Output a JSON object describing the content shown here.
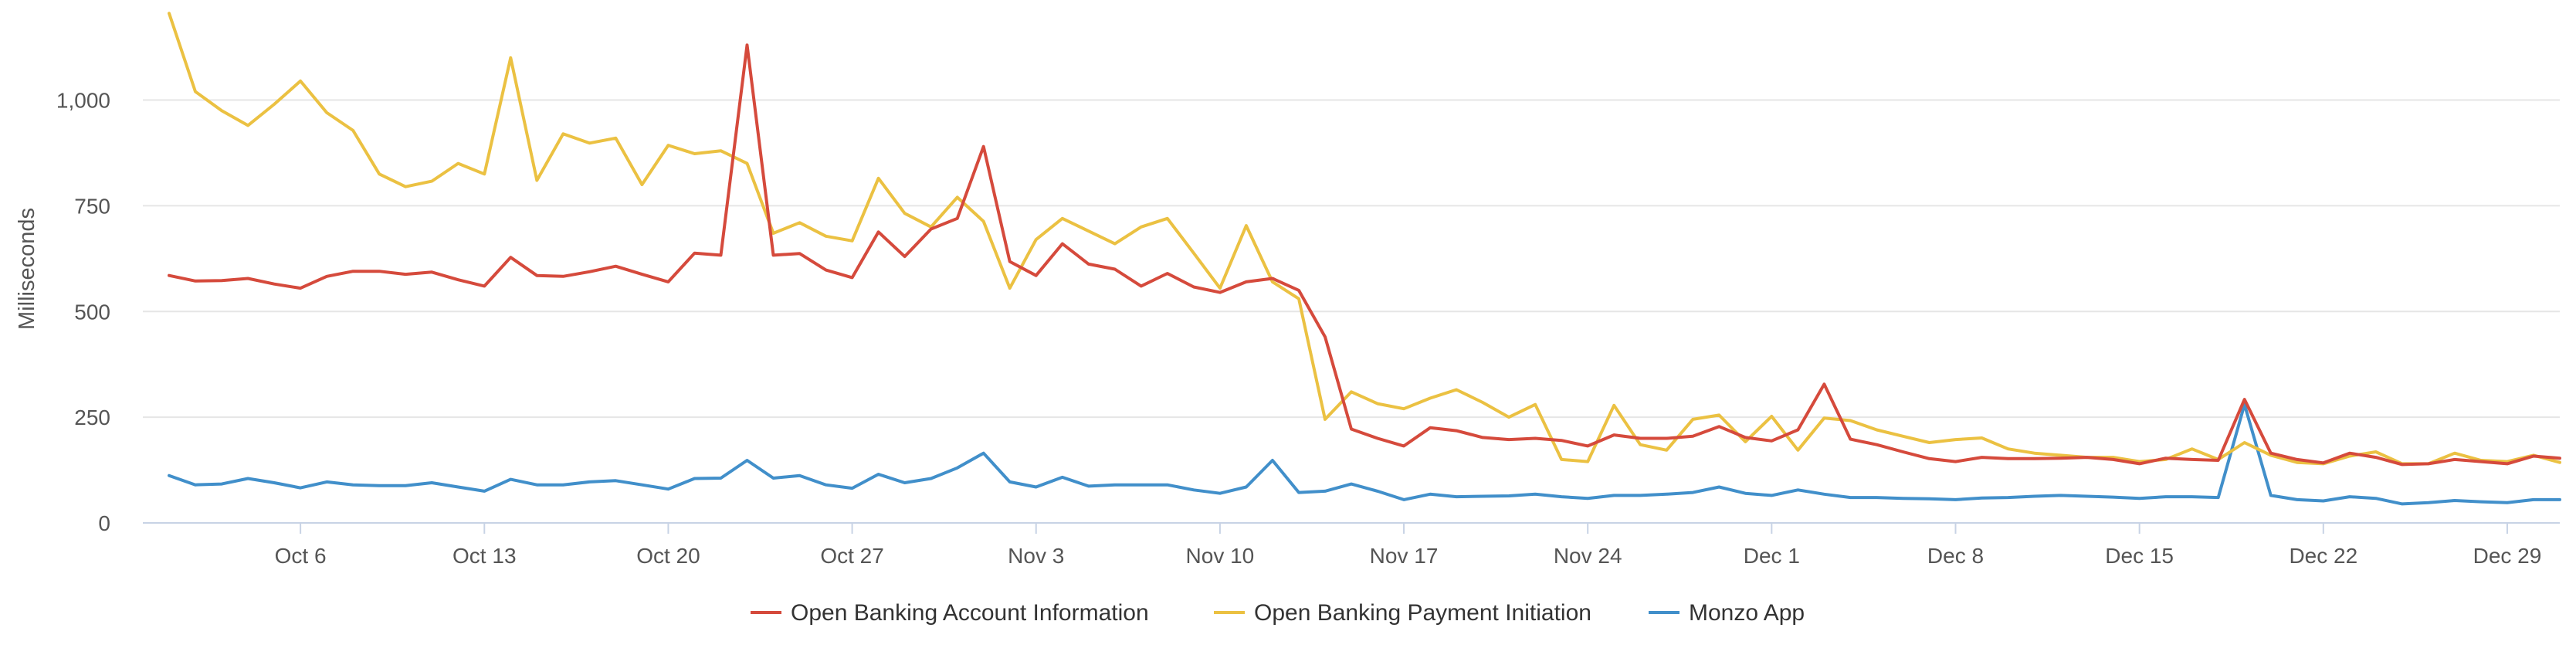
{
  "chart_data": {
    "type": "line",
    "title": "",
    "xlabel": "",
    "ylabel": "Milliseconds",
    "ylim": [
      0,
      1200
    ],
    "yticks": [
      0,
      250,
      500,
      750,
      1000
    ],
    "ytick_labels": [
      "0",
      "250",
      "500",
      "750",
      "1,000"
    ],
    "xlim": [
      "2024-09-30",
      "2024-12-31"
    ],
    "xticks": [
      "2024-10-06",
      "2024-10-13",
      "2024-10-20",
      "2024-10-27",
      "2024-11-03",
      "2024-11-10",
      "2024-11-17",
      "2024-11-24",
      "2024-12-01",
      "2024-12-08",
      "2024-12-15",
      "2024-12-22",
      "2024-12-29"
    ],
    "xtick_labels": [
      "Oct 6",
      "Oct 13",
      "Oct 20",
      "Oct 27",
      "Nov 3",
      "Nov 10",
      "Nov 17",
      "Nov 24",
      "Dec 1",
      "Dec 8",
      "Dec 15",
      "Dec 22",
      "Dec 29"
    ],
    "x": [
      "2024-10-01",
      "2024-10-02",
      "2024-10-03",
      "2024-10-04",
      "2024-10-05",
      "2024-10-06",
      "2024-10-07",
      "2024-10-08",
      "2024-10-09",
      "2024-10-10",
      "2024-10-11",
      "2024-10-12",
      "2024-10-13",
      "2024-10-14",
      "2024-10-15",
      "2024-10-16",
      "2024-10-17",
      "2024-10-18",
      "2024-10-19",
      "2024-10-20",
      "2024-10-21",
      "2024-10-22",
      "2024-10-23",
      "2024-10-24",
      "2024-10-25",
      "2024-10-26",
      "2024-10-27",
      "2024-10-28",
      "2024-10-29",
      "2024-10-30",
      "2024-10-31",
      "2024-11-01",
      "2024-11-02",
      "2024-11-03",
      "2024-11-04",
      "2024-11-05",
      "2024-11-06",
      "2024-11-07",
      "2024-11-08",
      "2024-11-09",
      "2024-11-10",
      "2024-11-11",
      "2024-11-12",
      "2024-11-13",
      "2024-11-14",
      "2024-11-15",
      "2024-11-16",
      "2024-11-17",
      "2024-11-18",
      "2024-11-19",
      "2024-11-20",
      "2024-11-21",
      "2024-11-22",
      "2024-11-23",
      "2024-11-24",
      "2024-11-25",
      "2024-11-26",
      "2024-11-27",
      "2024-11-28",
      "2024-11-29",
      "2024-11-30",
      "2024-12-01",
      "2024-12-02",
      "2024-12-03",
      "2024-12-04",
      "2024-12-05",
      "2024-12-06",
      "2024-12-07",
      "2024-12-08",
      "2024-12-09",
      "2024-12-10",
      "2024-12-11",
      "2024-12-12",
      "2024-12-13",
      "2024-12-14",
      "2024-12-15",
      "2024-12-16",
      "2024-12-17",
      "2024-12-18",
      "2024-12-19",
      "2024-12-20",
      "2024-12-21",
      "2024-12-22",
      "2024-12-23",
      "2024-12-24",
      "2024-12-25",
      "2024-12-26",
      "2024-12-27",
      "2024-12-28",
      "2024-12-29",
      "2024-12-30",
      "2024-12-31"
    ],
    "series": [
      {
        "name": "Open Banking Account Information",
        "color": "#d54a3c",
        "values": [
          585,
          572,
          573,
          578,
          565,
          555,
          583,
          595,
          595,
          588,
          593,
          575,
          560,
          628,
          585,
          583,
          594,
          607,
          588,
          570,
          638,
          633,
          1130,
          633,
          637,
          598,
          580,
          688,
          630,
          695,
          720,
          890,
          618,
          585,
          660,
          612,
          600,
          560,
          590,
          558,
          545,
          570,
          578,
          550,
          440,
          222,
          200,
          182,
          225,
          218,
          202,
          197,
          200,
          195,
          182,
          208,
          200,
          200,
          205,
          228,
          202,
          194,
          220,
          328,
          198,
          185,
          168,
          152,
          145,
          155,
          152,
          152,
          153,
          155,
          150,
          140,
          153,
          150,
          148,
          292,
          165,
          150,
          142,
          165,
          155,
          138,
          140,
          150,
          145,
          140,
          158,
          153
        ]
      },
      {
        "name": "Open Banking Payment Initiation",
        "color": "#ebc142",
        "values": [
          1205,
          1020,
          975,
          940,
          990,
          1045,
          970,
          928,
          825,
          795,
          808,
          850,
          825,
          1100,
          810,
          920,
          898,
          910,
          800,
          893,
          873,
          880,
          850,
          685,
          710,
          678,
          667,
          815,
          732,
          700,
          770,
          713,
          555,
          670,
          720,
          690,
          660,
          700,
          720,
          638,
          555,
          703,
          570,
          530,
          245,
          310,
          282,
          270,
          295,
          315,
          285,
          250,
          280,
          150,
          145,
          278,
          185,
          172,
          245,
          255,
          192,
          252,
          172,
          248,
          242,
          220,
          205,
          190,
          197,
          201,
          175,
          165,
          160,
          155,
          155,
          145,
          150,
          175,
          150,
          190,
          160,
          143,
          140,
          158,
          168,
          140,
          140,
          165,
          148,
          145,
          160,
          143
        ]
      },
      {
        "name": "Monzo App",
        "color": "#418fca",
        "values": [
          112,
          90,
          92,
          105,
          95,
          83,
          97,
          90,
          88,
          88,
          95,
          85,
          75,
          103,
          90,
          90,
          97,
          100,
          90,
          80,
          105,
          106,
          148,
          106,
          112,
          90,
          82,
          115,
          95,
          105,
          130,
          165,
          97,
          85,
          108,
          87,
          90,
          90,
          90,
          78,
          70,
          85,
          148,
          72,
          75,
          92,
          75,
          55,
          68,
          62,
          63,
          64,
          68,
          62,
          58,
          65,
          65,
          68,
          72,
          85,
          70,
          65,
          78,
          68,
          60,
          60,
          58,
          57,
          55,
          59,
          60,
          63,
          65,
          63,
          61,
          58,
          62,
          62,
          60,
          280,
          65,
          55,
          52,
          62,
          58,
          45,
          48,
          53,
          50,
          48,
          55,
          55
        ]
      }
    ],
    "grid": true,
    "legend_position": "bottom-center",
    "axis_color": "#c8d3e5",
    "grid_color": "#e6e6e6"
  }
}
